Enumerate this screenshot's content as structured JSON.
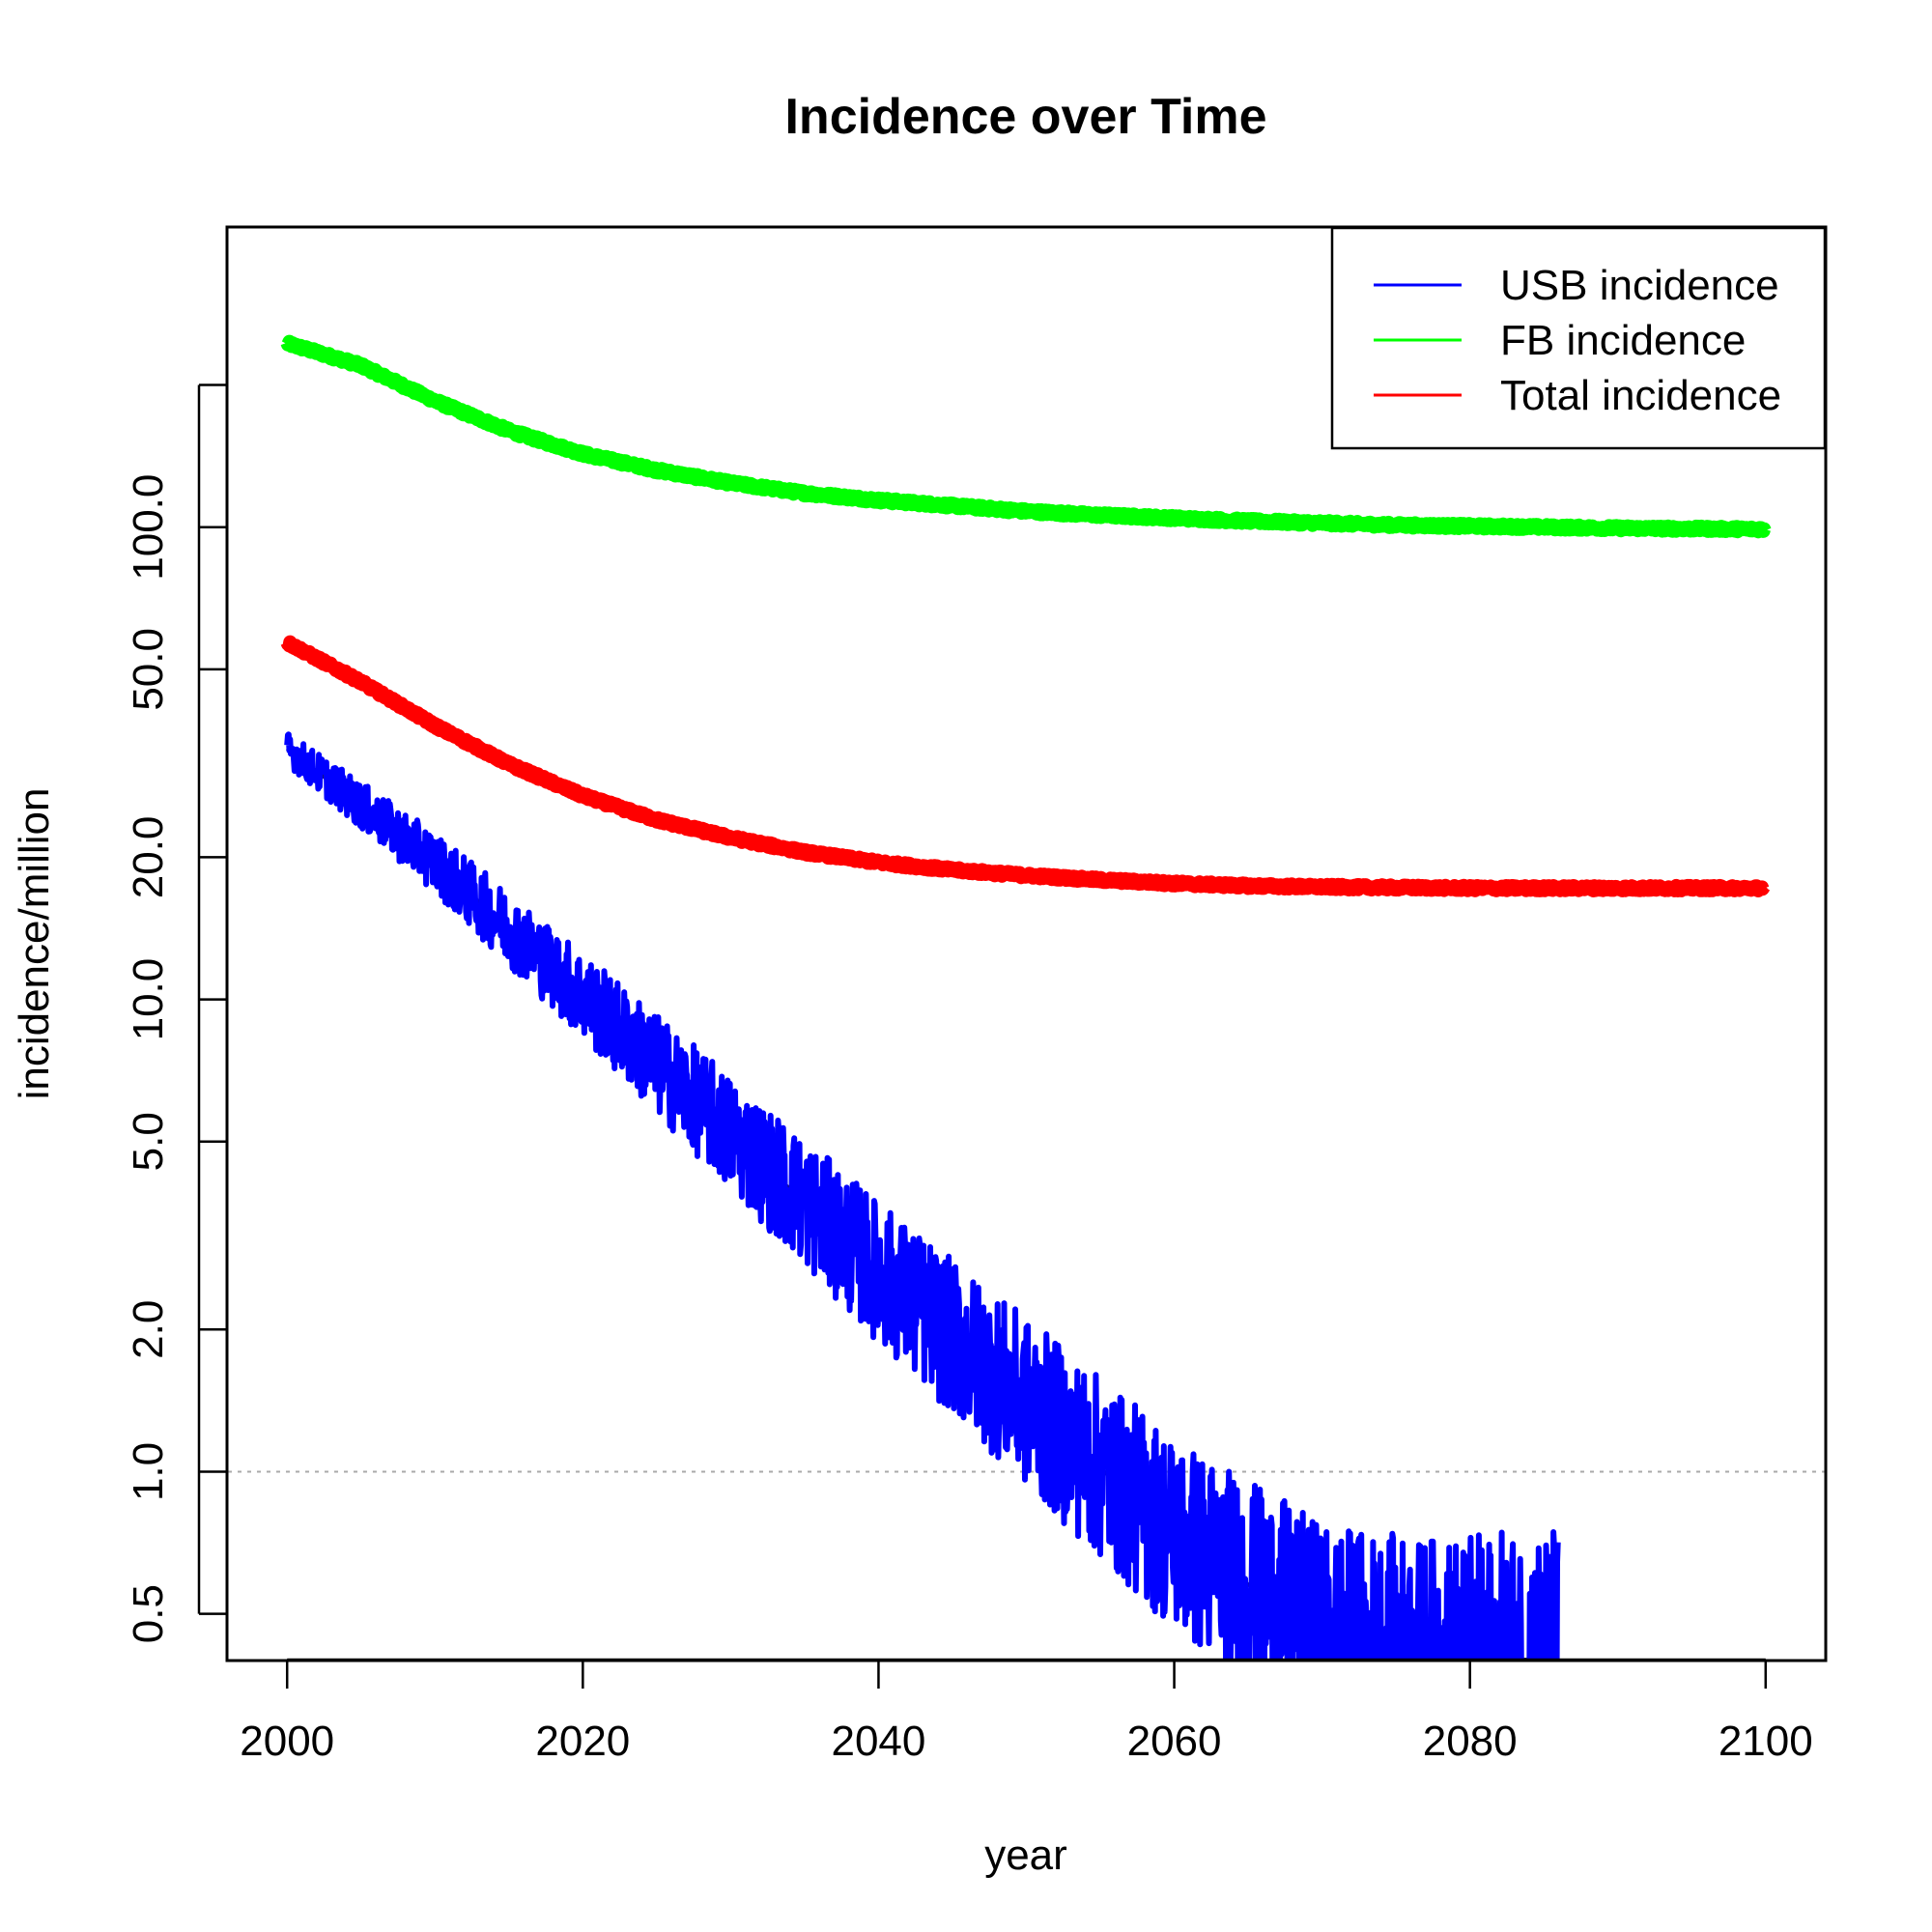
{
  "chart_data": {
    "type": "line",
    "title": "Incidence over Time",
    "xlabel": "year",
    "ylabel": "incidence/million",
    "xlim": [
      1996,
      2104
    ],
    "ylim": [
      0.4,
      430
    ],
    "y_scale": "log",
    "x_ticks": [
      2000,
      2020,
      2040,
      2060,
      2080,
      2100
    ],
    "x_tick_labels": [
      "2000",
      "2020",
      "2040",
      "2060",
      "2080",
      "2100"
    ],
    "y_ticks": [
      0.5,
      1.0,
      2.0,
      5.0,
      10.0,
      20.0,
      50.0,
      100.0,
      200.0
    ],
    "y_tick_labels": [
      "0.5",
      "1.0",
      "2.0",
      "5.0",
      "10.0",
      "20.0",
      "50.0",
      "100.0",
      ""
    ],
    "reference_line": {
      "y": 1.0,
      "style": "dotted",
      "color": "#aaaaaa"
    },
    "legend": {
      "position": "top-right",
      "entries": [
        {
          "label": "USB incidence",
          "color": "#0000ff"
        },
        {
          "label": "FB incidence",
          "color": "#00ff00"
        },
        {
          "label": "Total incidence",
          "color": "#ff0000"
        }
      ]
    },
    "series": [
      {
        "name": "FB incidence",
        "color": "#00ff00",
        "noise": 0.012,
        "x": [
          2000,
          2005,
          2010,
          2015,
          2020,
          2025,
          2030,
          2035,
          2040,
          2045,
          2050,
          2055,
          2060,
          2065,
          2070,
          2075,
          2080,
          2085,
          2090,
          2095,
          2100
        ],
        "y": [
          245,
          220,
          185,
          160,
          143,
          132,
          124,
          118,
          114,
          111,
          108,
          106,
          104.5,
          103,
          102,
          101,
          100.5,
          100,
          99.5,
          99.2,
          99
        ]
      },
      {
        "name": "Total incidence",
        "color": "#ff0000",
        "noise": 0.012,
        "x": [
          2000,
          2005,
          2010,
          2015,
          2020,
          2025,
          2030,
          2035,
          2040,
          2045,
          2050,
          2055,
          2060,
          2065,
          2070,
          2075,
          2080,
          2085,
          2090,
          2095,
          2100
        ],
        "y": [
          57,
          47,
          38,
          31.5,
          27,
          24,
          22,
          20.5,
          19.5,
          18.8,
          18.3,
          17.9,
          17.6,
          17.4,
          17.3,
          17.25,
          17.2,
          17.2,
          17.2,
          17.2,
          17.2
        ]
      },
      {
        "name": "USB incidence",
        "color": "#0000ff",
        "noise": 0.08,
        "x": [
          2000,
          2010,
          2020,
          2030,
          2040,
          2050,
          2060,
          2070,
          2077,
          2086
        ],
        "y": [
          34,
          19.5,
          10.2,
          5.2,
          2.65,
          1.4,
          0.74,
          0.45,
          0.4,
          0.4
        ]
      }
    ]
  }
}
